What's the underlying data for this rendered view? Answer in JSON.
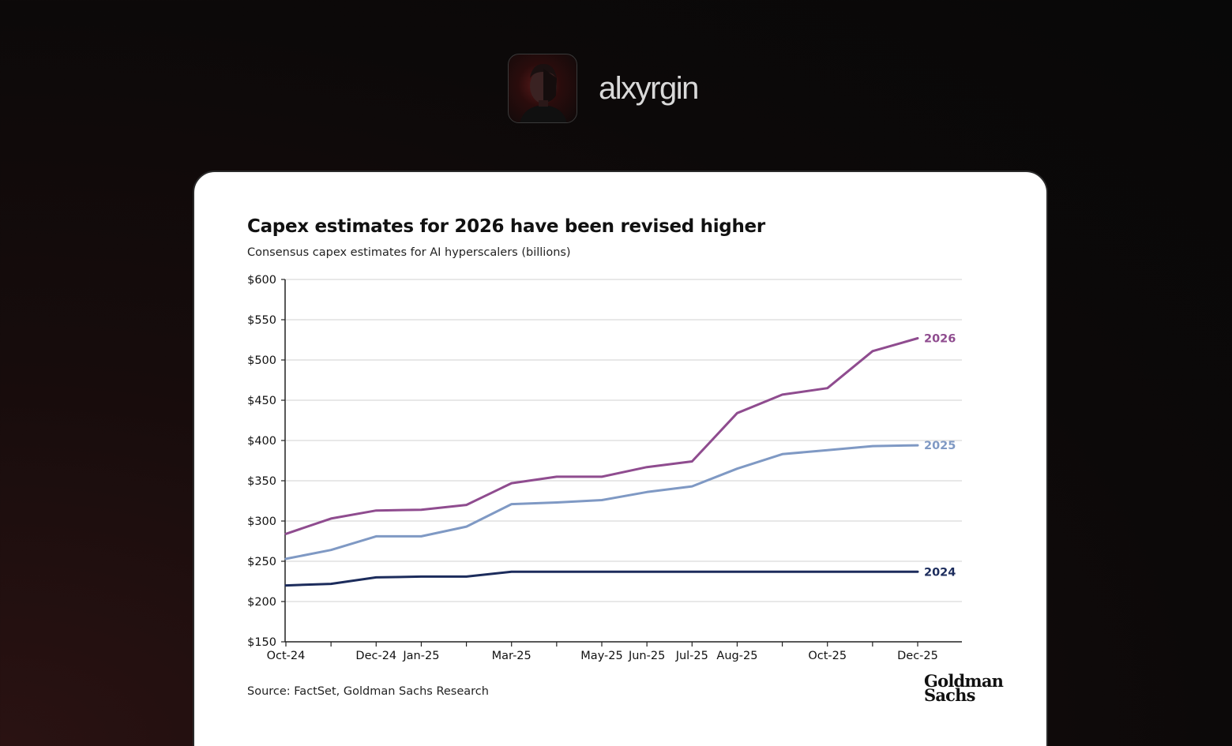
{
  "profile": {
    "username": "alxyrgin"
  },
  "logo": {
    "line1": "Goldman",
    "line2": "Sachs"
  },
  "source": "Source: FactSet, Goldman Sachs Research",
  "colors": {
    "s2026": "#8f4c8f",
    "s2025": "#7f99c4",
    "s2024": "#1c2c5c",
    "grid": "#d9d9d9",
    "axis": "#222222"
  },
  "chart_data": {
    "type": "line",
    "title": "Capex estimates for 2026 have been revised higher",
    "subtitle": "Consensus capex estimates for AI hyperscalers (billions)",
    "xlabel": "",
    "ylabel": "",
    "ylim": [
      150,
      600
    ],
    "yticks": [
      150,
      200,
      250,
      300,
      350,
      400,
      450,
      500,
      550,
      600
    ],
    "ytick_labels": [
      "$150",
      "$200",
      "$250",
      "$300",
      "$350",
      "$400",
      "$450",
      "$500",
      "$550",
      "$600"
    ],
    "x": [
      "Oct-24",
      "Nov-24",
      "Dec-24",
      "Jan-25",
      "Feb-25",
      "Mar-25",
      "Apr-25",
      "May-25",
      "Jun-25",
      "Jul-25",
      "Aug-25",
      "Sep-25",
      "Oct-25",
      "Nov-25",
      "Dec-25"
    ],
    "xtick_labels": [
      "Oct-24",
      "",
      "Dec-24",
      "Jan-25",
      "",
      "Mar-25",
      "",
      "May-25",
      "Jun-25",
      "Jul-25",
      "Aug-25",
      "",
      "Oct-25",
      "",
      "Dec-25"
    ],
    "grid": true,
    "legend": "end-of-line labels",
    "series": [
      {
        "name": "2026",
        "colorKey": "s2026",
        "values": [
          284,
          303,
          313,
          314,
          320,
          347,
          355,
          355,
          367,
          374,
          434,
          457,
          465,
          511,
          527
        ]
      },
      {
        "name": "2025",
        "colorKey": "s2025",
        "values": [
          253,
          264,
          281,
          281,
          293,
          321,
          323,
          326,
          336,
          343,
          365,
          383,
          388,
          393,
          394
        ]
      },
      {
        "name": "2024",
        "colorKey": "s2024",
        "values": [
          220,
          222,
          230,
          231,
          231,
          237,
          237,
          237,
          237,
          237,
          237,
          237,
          237,
          237,
          237
        ]
      }
    ]
  }
}
